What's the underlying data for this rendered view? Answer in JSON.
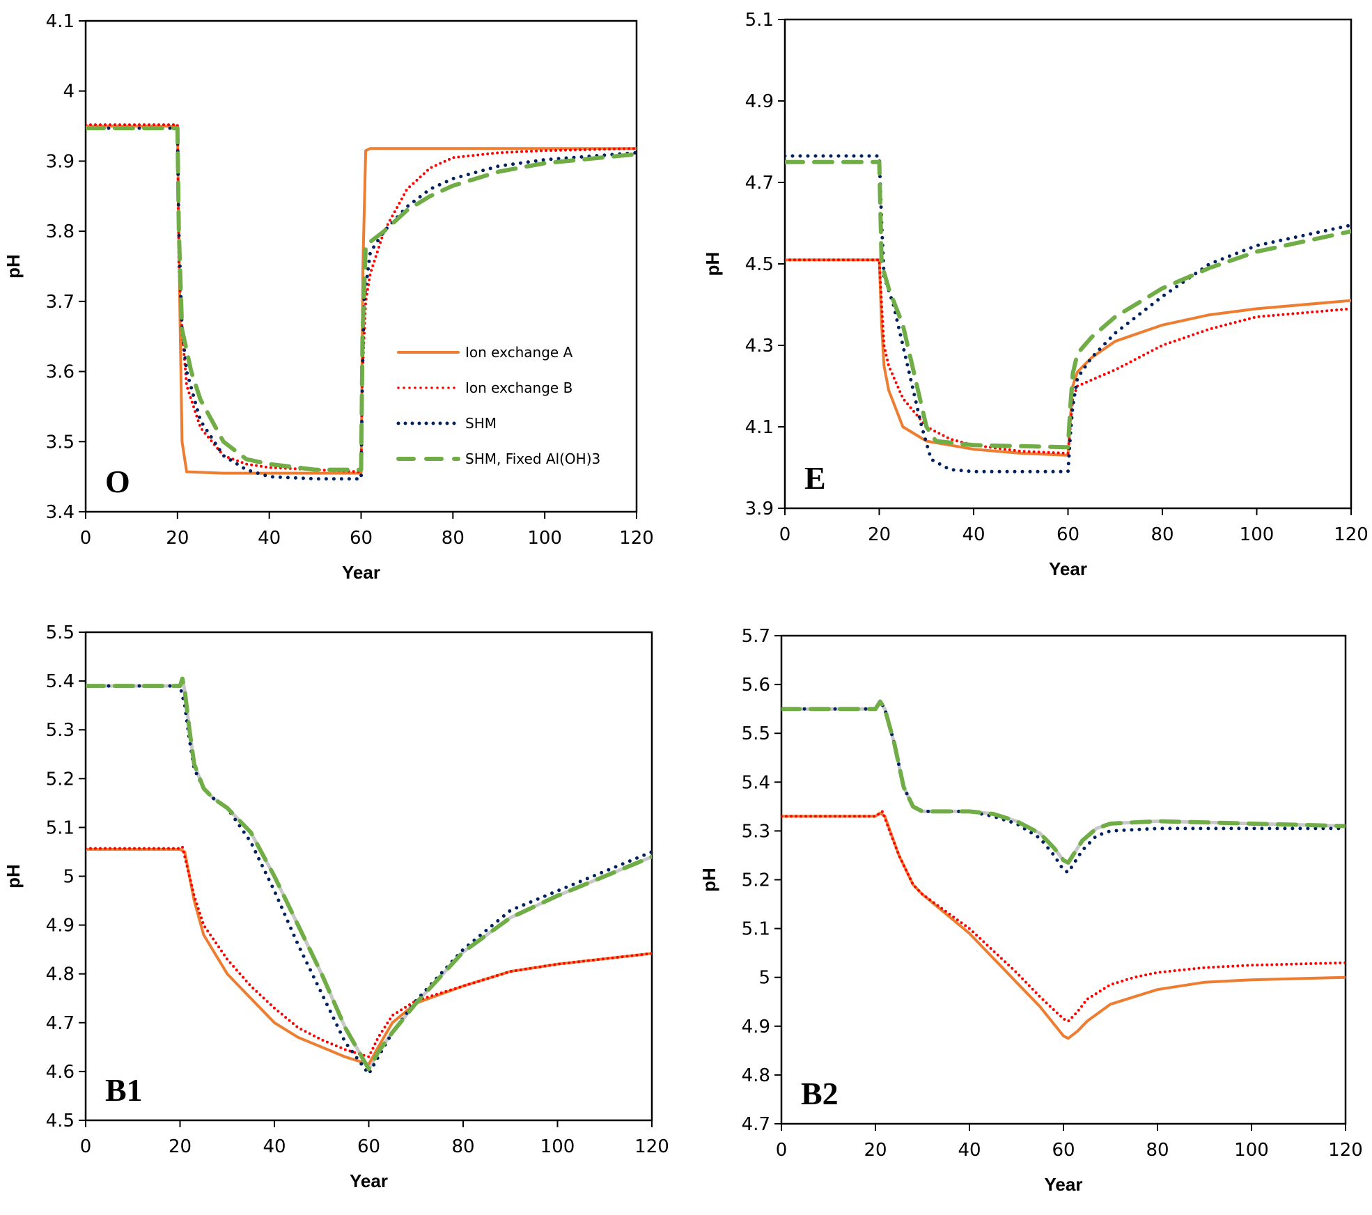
{
  "figure": {
    "legend": [
      {
        "key": "ionA",
        "label": "Ion exchange A"
      },
      {
        "key": "ionB",
        "label": "Ion exchange B"
      },
      {
        "key": "shm",
        "label": "SHM"
      },
      {
        "key": "fixed",
        "label": "SHM, Fixed Al(OH)3"
      }
    ],
    "series_styles": {
      "ionA": {
        "color": "#ED7D31",
        "style": "solid"
      },
      "ionB": {
        "color": "#FF0000",
        "style": "dotted"
      },
      "shm": {
        "color": "#002060",
        "style": "dotted"
      },
      "fixed": {
        "color": "#70AD47",
        "style": "dashed"
      },
      "shadow": {
        "color": "#C8C8C8",
        "style": "solid"
      }
    }
  },
  "chart_data": [
    {
      "type": "line",
      "panel": "O",
      "title": "",
      "xlabel": "Year",
      "ylabel": "pH",
      "xlim": [
        0,
        120
      ],
      "ylim": [
        3.4,
        4.1
      ],
      "xticks": [
        "0",
        "20",
        "40",
        "60",
        "80",
        "100",
        "120"
      ],
      "yticks": [
        "3.4",
        "3.5",
        "3.6",
        "3.7",
        "3.8",
        "3.9",
        "4",
        "4.1"
      ],
      "xtick_values": [
        0,
        20,
        40,
        60,
        80,
        100,
        120
      ],
      "ytick_values": [
        3.4,
        3.5,
        3.6,
        3.7,
        3.8,
        3.9,
        4.0,
        4.1
      ],
      "grid": false,
      "legend_position": "lower-right",
      "show_legend": true,
      "series": [
        {
          "key": "ionA",
          "name": "Ion exchange A",
          "x": [
            0,
            20,
            20.5,
            21,
            22,
            30,
            60,
            60.4,
            61,
            62,
            120
          ],
          "y": [
            3.95,
            3.95,
            3.7,
            3.5,
            3.457,
            3.455,
            3.455,
            3.75,
            3.915,
            3.918,
            3.918
          ]
        },
        {
          "key": "ionB",
          "name": "Ion exchange B",
          "x": [
            0,
            20,
            20.3,
            21,
            22,
            25,
            30,
            35,
            40,
            50,
            60,
            60.3,
            61,
            62,
            65,
            70,
            75,
            80,
            90,
            100,
            120
          ],
          "y": [
            3.952,
            3.952,
            3.75,
            3.66,
            3.58,
            3.52,
            3.48,
            3.468,
            3.463,
            3.46,
            3.457,
            3.6,
            3.7,
            3.74,
            3.8,
            3.86,
            3.89,
            3.905,
            3.912,
            3.915,
            3.918
          ]
        },
        {
          "key": "shm",
          "name": "SHM",
          "x": [
            0,
            20,
            20.3,
            21,
            22,
            25,
            30,
            35,
            40,
            50,
            60,
            60.3,
            60.6,
            62,
            65,
            70,
            75,
            80,
            90,
            100,
            120
          ],
          "y": [
            3.947,
            3.947,
            3.8,
            3.66,
            3.6,
            3.53,
            3.48,
            3.46,
            3.45,
            3.447,
            3.447,
            3.6,
            3.7,
            3.77,
            3.8,
            3.835,
            3.86,
            3.875,
            3.893,
            3.902,
            3.912
          ]
        },
        {
          "key": "fixed",
          "name": "SHM, Fixed Al(OH)3",
          "x": [
            0,
            20,
            20.3,
            21,
            23,
            25,
            30,
            35,
            40,
            50,
            60,
            60.3,
            61,
            65,
            70,
            75,
            80,
            90,
            100,
            120
          ],
          "y": [
            3.947,
            3.947,
            3.8,
            3.66,
            3.6,
            3.56,
            3.5,
            3.475,
            3.468,
            3.46,
            3.46,
            3.65,
            3.78,
            3.8,
            3.83,
            3.85,
            3.865,
            3.885,
            3.897,
            3.91
          ]
        }
      ]
    },
    {
      "type": "line",
      "panel": "E",
      "title": "",
      "xlabel": "Year",
      "ylabel": "pH",
      "xlim": [
        0,
        120
      ],
      "ylim": [
        3.9,
        5.1
      ],
      "xticks": [
        "0",
        "20",
        "40",
        "60",
        "80",
        "100",
        "120"
      ],
      "yticks": [
        "3.9",
        "4.1",
        "4.3",
        "4.5",
        "4.7",
        "4.9",
        "5.1"
      ],
      "xtick_values": [
        0,
        20,
        40,
        60,
        80,
        100,
        120
      ],
      "ytick_values": [
        3.9,
        4.1,
        4.3,
        4.5,
        4.7,
        4.9,
        5.1
      ],
      "grid": false,
      "show_legend": false,
      "series": [
        {
          "key": "ionA",
          "name": "Ion exchange A",
          "x": [
            0,
            20,
            20.5,
            21,
            22,
            25,
            30,
            40,
            50,
            60,
            60.5,
            61,
            62,
            65,
            70,
            80,
            90,
            100,
            120
          ],
          "y": [
            4.51,
            4.51,
            4.35,
            4.25,
            4.19,
            4.1,
            4.065,
            4.045,
            4.035,
            4.03,
            4.12,
            4.2,
            4.235,
            4.27,
            4.31,
            4.35,
            4.375,
            4.39,
            4.41
          ]
        },
        {
          "key": "ionB",
          "name": "Ion exchange B",
          "x": [
            0,
            20,
            20.5,
            21,
            22,
            25,
            30,
            35,
            40,
            50,
            60,
            60.5,
            61,
            62,
            65,
            70,
            80,
            90,
            100,
            120
          ],
          "y": [
            4.51,
            4.51,
            4.4,
            4.3,
            4.25,
            4.17,
            4.1,
            4.07,
            4.055,
            4.04,
            4.035,
            4.1,
            4.17,
            4.2,
            4.215,
            4.24,
            4.3,
            4.34,
            4.37,
            4.39
          ]
        },
        {
          "key": "shm",
          "name": "SHM",
          "x": [
            0,
            20,
            20.5,
            21,
            23,
            25,
            27,
            29,
            31,
            35,
            40,
            60,
            60.5,
            61,
            62,
            65,
            70,
            80,
            90,
            100,
            120
          ],
          "y": [
            4.765,
            4.765,
            4.6,
            4.47,
            4.4,
            4.3,
            4.2,
            4.1,
            4.02,
            3.995,
            3.99,
            3.99,
            4.08,
            4.15,
            4.22,
            4.27,
            4.33,
            4.42,
            4.5,
            4.545,
            4.595
          ]
        },
        {
          "key": "fixed",
          "name": "SHM, Fixed Al(OH)3",
          "x": [
            0,
            20,
            20.5,
            22,
            25,
            28,
            30,
            32,
            40,
            60,
            60.5,
            61,
            62,
            65,
            70,
            80,
            90,
            100,
            120
          ],
          "y": [
            4.75,
            4.75,
            4.5,
            4.44,
            4.35,
            4.2,
            4.1,
            4.065,
            4.055,
            4.05,
            4.15,
            4.23,
            4.28,
            4.32,
            4.37,
            4.44,
            4.49,
            4.53,
            4.58
          ]
        }
      ]
    },
    {
      "type": "line",
      "panel": "B1",
      "title": "",
      "xlabel": "Year",
      "ylabel": "pH",
      "xlim": [
        0,
        120
      ],
      "ylim": [
        4.5,
        5.5
      ],
      "xticks": [
        "0",
        "20",
        "40",
        "60",
        "80",
        "100",
        "120"
      ],
      "yticks": [
        "4.5",
        "4.6",
        "4.7",
        "4.8",
        "4.9",
        "5",
        "5.1",
        "5.2",
        "5.3",
        "5.4",
        "5.5"
      ],
      "xtick_values": [
        0,
        20,
        40,
        60,
        80,
        100,
        120
      ],
      "ytick_values": [
        4.5,
        4.6,
        4.7,
        4.8,
        4.9,
        5.0,
        5.1,
        5.2,
        5.3,
        5.4,
        5.5
      ],
      "grid": false,
      "show_legend": false,
      "series": [
        {
          "key": "shadow",
          "name": "",
          "x": [
            0,
            20,
            20.5,
            21,
            22,
            23,
            25,
            27,
            30,
            35,
            40,
            45,
            50,
            55,
            60,
            62,
            65,
            70,
            80,
            90,
            100,
            110,
            120
          ],
          "y": [
            5.39,
            5.39,
            5.405,
            5.38,
            5.3,
            5.23,
            5.18,
            5.16,
            5.14,
            5.09,
            5.0,
            4.9,
            4.8,
            4.69,
            4.605,
            4.64,
            4.68,
            4.74,
            4.845,
            4.915,
            4.96,
            5.0,
            5.04
          ]
        },
        {
          "key": "ionA",
          "name": "Ion exchange A",
          "x": [
            0,
            20,
            21,
            23,
            25,
            30,
            35,
            40,
            45,
            50,
            55,
            60,
            62,
            65,
            70,
            80,
            90,
            100,
            120
          ],
          "y": [
            5.055,
            5.055,
            5.05,
            4.95,
            4.88,
            4.8,
            4.75,
            4.7,
            4.67,
            4.65,
            4.63,
            4.615,
            4.65,
            4.7,
            4.74,
            4.775,
            4.805,
            4.82,
            4.842
          ]
        },
        {
          "key": "ionB",
          "name": "Ion exchange B",
          "x": [
            0,
            20,
            20.5,
            23,
            25,
            30,
            35,
            40,
            45,
            50,
            55,
            60,
            62,
            65,
            70,
            80,
            90,
            100,
            120
          ],
          "y": [
            5.057,
            5.057,
            5.06,
            4.96,
            4.9,
            4.83,
            4.775,
            4.73,
            4.69,
            4.665,
            4.645,
            4.63,
            4.67,
            4.715,
            4.745,
            4.775,
            4.805,
            4.82,
            4.842
          ]
        },
        {
          "key": "shm",
          "name": "SHM",
          "x": [
            0,
            20,
            21,
            22,
            23,
            25,
            27,
            30,
            35,
            40,
            45,
            50,
            55,
            60,
            62,
            65,
            70,
            80,
            90,
            100,
            110,
            120
          ],
          "y": [
            5.39,
            5.39,
            5.35,
            5.28,
            5.22,
            5.18,
            5.16,
            5.14,
            5.07,
            4.97,
            4.86,
            4.76,
            4.66,
            4.595,
            4.63,
            4.68,
            4.745,
            4.85,
            4.93,
            4.97,
            5.01,
            5.05
          ]
        },
        {
          "key": "fixed",
          "name": "SHM, Fixed Al(OH)3",
          "x": [
            0,
            20,
            20.5,
            21,
            22,
            23,
            25,
            27,
            30,
            35,
            40,
            45,
            50,
            55,
            60,
            62,
            65,
            70,
            80,
            90,
            100,
            110,
            120
          ],
          "y": [
            5.39,
            5.39,
            5.405,
            5.38,
            5.3,
            5.23,
            5.18,
            5.16,
            5.14,
            5.09,
            5.0,
            4.9,
            4.8,
            4.69,
            4.605,
            4.64,
            4.68,
            4.74,
            4.845,
            4.915,
            4.96,
            5.0,
            5.04
          ]
        }
      ]
    },
    {
      "type": "line",
      "panel": "B2",
      "title": "",
      "xlabel": "Year",
      "ylabel": "pH",
      "xlim": [
        0,
        120
      ],
      "ylim": [
        4.7,
        5.7
      ],
      "xticks": [
        "0",
        "20",
        "40",
        "60",
        "80",
        "100",
        "120"
      ],
      "yticks": [
        "4.7",
        "4.8",
        "4.9",
        "5",
        "5.1",
        "5.2",
        "5.3",
        "5.4",
        "5.5",
        "5.6",
        "5.7"
      ],
      "xtick_values": [
        0,
        20,
        40,
        60,
        80,
        100,
        120
      ],
      "ytick_values": [
        4.7,
        4.8,
        4.9,
        5.0,
        5.1,
        5.2,
        5.3,
        5.4,
        5.5,
        5.6,
        5.7
      ],
      "grid": false,
      "show_legend": false,
      "series": [
        {
          "key": "shadow",
          "name": "",
          "x": [
            0,
            20,
            21,
            22,
            24,
            26,
            28,
            30,
            40,
            45,
            50,
            55,
            58,
            60,
            61,
            62,
            64,
            67,
            70,
            80,
            100,
            120
          ],
          "y": [
            5.55,
            5.55,
            5.565,
            5.55,
            5.48,
            5.39,
            5.35,
            5.34,
            5.34,
            5.335,
            5.32,
            5.295,
            5.265,
            5.24,
            5.235,
            5.25,
            5.28,
            5.305,
            5.315,
            5.32,
            5.315,
            5.31
          ]
        },
        {
          "key": "ionA",
          "name": "Ion exchange A",
          "x": [
            0,
            20,
            21,
            22,
            25,
            28,
            30,
            35,
            40,
            45,
            50,
            55,
            60,
            61,
            63,
            65,
            70,
            75,
            80,
            90,
            100,
            120
          ],
          "y": [
            5.33,
            5.33,
            5.337,
            5.33,
            5.25,
            5.19,
            5.17,
            5.13,
            5.09,
            5.04,
            4.99,
            4.94,
            4.88,
            4.875,
            4.89,
            4.91,
            4.945,
            4.96,
            4.975,
            4.99,
            4.995,
            5.0
          ]
        },
        {
          "key": "ionB",
          "name": "Ion exchange B",
          "x": [
            0,
            20,
            21.5,
            23,
            25,
            28,
            30,
            35,
            40,
            45,
            50,
            55,
            60,
            61,
            63,
            65,
            70,
            75,
            80,
            90,
            100,
            120
          ],
          "y": [
            5.33,
            5.33,
            5.34,
            5.3,
            5.25,
            5.19,
            5.17,
            5.135,
            5.1,
            5.055,
            5.01,
            4.96,
            4.915,
            4.91,
            4.93,
            4.955,
            4.985,
            5.0,
            5.01,
            5.02,
            5.025,
            5.03
          ]
        },
        {
          "key": "shm",
          "name": "SHM",
          "x": [
            0,
            20,
            21,
            22,
            24,
            26,
            28,
            30,
            40,
            45,
            50,
            55,
            58,
            60,
            61,
            62,
            64,
            67,
            70,
            80,
            100,
            120
          ],
          "y": [
            5.55,
            5.55,
            5.565,
            5.55,
            5.48,
            5.39,
            5.35,
            5.34,
            5.34,
            5.33,
            5.315,
            5.285,
            5.25,
            5.22,
            5.215,
            5.23,
            5.26,
            5.29,
            5.3,
            5.305,
            5.305,
            5.305
          ]
        },
        {
          "key": "fixed",
          "name": "SHM, Fixed Al(OH)3",
          "x": [
            0,
            20,
            21,
            22,
            24,
            26,
            28,
            30,
            40,
            45,
            50,
            55,
            58,
            60,
            61,
            62,
            64,
            67,
            70,
            80,
            100,
            120
          ],
          "y": [
            5.55,
            5.55,
            5.565,
            5.55,
            5.48,
            5.39,
            5.35,
            5.34,
            5.34,
            5.335,
            5.32,
            5.295,
            5.265,
            5.24,
            5.235,
            5.25,
            5.28,
            5.305,
            5.315,
            5.32,
            5.315,
            5.31
          ]
        }
      ]
    }
  ]
}
